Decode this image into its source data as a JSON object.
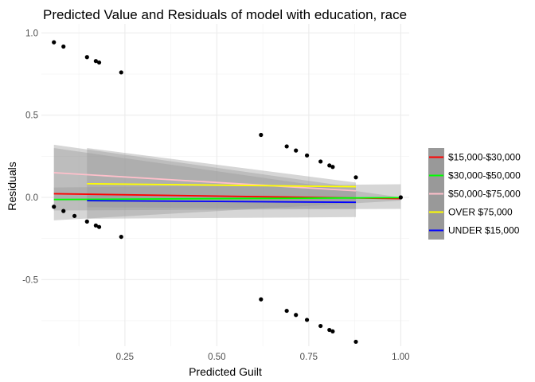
{
  "chart_data": {
    "type": "scatter",
    "title": "Predicted Value and Residuals of model with education, race",
    "xlabel": "Predicted Guilt",
    "ylabel": "Residuals",
    "xlim": [
      0.023,
      1.023
    ],
    "ylim": [
      -0.905,
      1.055
    ],
    "x_ticks": [
      0.25,
      0.5,
      0.75,
      1.0
    ],
    "x_tick_labels": [
      "0.25",
      "0.50",
      "0.75",
      "1.00"
    ],
    "y_ticks": [
      -0.5,
      0.0,
      0.5,
      1.0
    ],
    "y_tick_labels": [
      "-0.5",
      "0.0",
      "0.5",
      "1.0"
    ],
    "grid": true,
    "legend_position": "right",
    "points": [
      {
        "x": 0.057,
        "y": 0.943
      },
      {
        "x": 0.083,
        "y": 0.917
      },
      {
        "x": 0.147,
        "y": 0.853
      },
      {
        "x": 0.171,
        "y": 0.829
      },
      {
        "x": 0.18,
        "y": 0.82
      },
      {
        "x": 0.24,
        "y": 0.76
      },
      {
        "x": 0.057,
        "y": -0.057
      },
      {
        "x": 0.083,
        "y": -0.083
      },
      {
        "x": 0.113,
        "y": -0.113
      },
      {
        "x": 0.147,
        "y": -0.147
      },
      {
        "x": 0.171,
        "y": -0.171
      },
      {
        "x": 0.18,
        "y": -0.18
      },
      {
        "x": 0.24,
        "y": -0.24
      },
      {
        "x": 0.62,
        "y": 0.38
      },
      {
        "x": 0.69,
        "y": 0.31
      },
      {
        "x": 0.715,
        "y": 0.285
      },
      {
        "x": 0.745,
        "y": 0.255
      },
      {
        "x": 0.782,
        "y": 0.218
      },
      {
        "x": 0.806,
        "y": 0.194
      },
      {
        "x": 0.815,
        "y": 0.185
      },
      {
        "x": 0.878,
        "y": 0.122
      },
      {
        "x": 1.0,
        "y": 0.0
      },
      {
        "x": 0.62,
        "y": -0.62
      },
      {
        "x": 0.69,
        "y": -0.69
      },
      {
        "x": 0.715,
        "y": -0.715
      },
      {
        "x": 0.745,
        "y": -0.745
      },
      {
        "x": 0.782,
        "y": -0.782
      },
      {
        "x": 0.806,
        "y": -0.806
      },
      {
        "x": 0.815,
        "y": -0.815
      },
      {
        "x": 0.878,
        "y": -0.878
      }
    ],
    "series": [
      {
        "name": "$15,000-$30,000",
        "color": "#ff0000",
        "line": [
          [
            0.057,
            0.022
          ],
          [
            1.0,
            -0.008
          ]
        ],
        "band": {
          "x": [
            0.057,
            1.0
          ],
          "upper": [
            0.3,
            0.0
          ],
          "lower": [
            -0.14,
            -0.02
          ]
        }
      },
      {
        "name": "$30,000-$50,000",
        "color": "#00ff00",
        "line": [
          [
            0.057,
            -0.013
          ],
          [
            1.0,
            -0.002
          ]
        ],
        "band": {
          "x": [
            0.057,
            1.0
          ],
          "upper": [
            0.06,
            0.08
          ],
          "lower": [
            -0.08,
            -0.07
          ]
        }
      },
      {
        "name": "$50,000-$75,000",
        "color": "#ffc0cb",
        "line": [
          [
            0.057,
            0.15
          ],
          [
            0.878,
            0.04
          ]
        ],
        "band": {
          "x": [
            0.057,
            0.878
          ],
          "upper": [
            0.32,
            0.06
          ],
          "lower": [
            -0.02,
            -0.02
          ]
        }
      },
      {
        "name": "OVER $75,000",
        "color": "#ffff00",
        "line": [
          [
            0.147,
            0.083
          ],
          [
            0.878,
            0.065
          ]
        ],
        "band": {
          "x": [
            0.147,
            0.878
          ],
          "upper": [
            0.3,
            0.09
          ],
          "lower": [
            -0.13,
            -0.12
          ]
        }
      },
      {
        "name": "UNDER $15,000",
        "color": "#0000ff",
        "line": [
          [
            0.147,
            -0.02
          ],
          [
            0.878,
            -0.03
          ]
        ],
        "band": {
          "x": [
            0.147,
            0.878
          ],
          "upper": [
            0.02,
            0.0
          ],
          "lower": [
            -0.06,
            -0.07
          ]
        }
      }
    ]
  }
}
